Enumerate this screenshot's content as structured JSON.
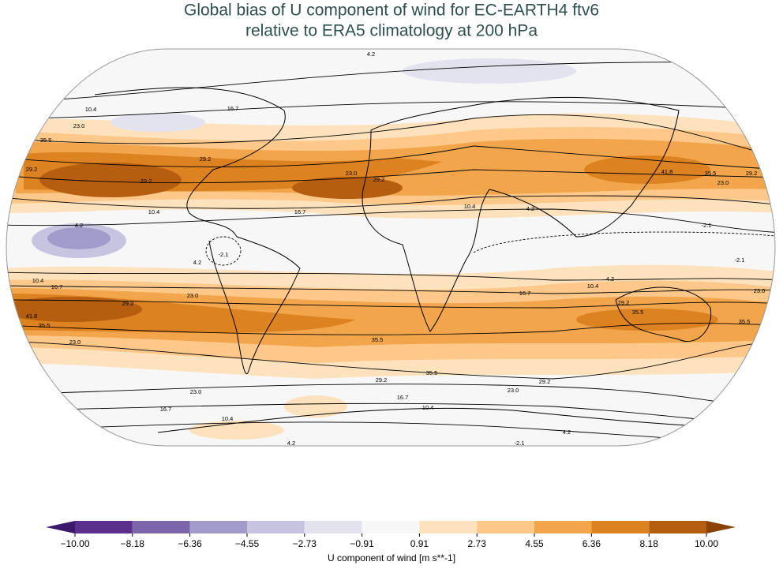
{
  "header": {
    "title": [
      "Global bias of U component of wind for EC-EARTH4 ftv6",
      "relative to ERA5 climatology at 200 hPa"
    ]
  },
  "map": {
    "contour_labels": [
      "4.2",
      "10.4",
      "16.7",
      "23.0",
      "35.5",
      "29.2",
      "29.2",
      "29.2",
      "10.4",
      "16.7",
      "4.2",
      "4.2",
      "-2.1",
      "23.0",
      "29.2",
      "10.4",
      "4.2",
      "41.8",
      "35.5",
      "29.2",
      "23.0",
      "-2.1",
      "-2.1",
      "10.4",
      "16.7",
      "23.0",
      "29.2",
      "41.8",
      "35.5",
      "23.0",
      "4.2",
      "10.4",
      "16.7",
      "29.2",
      "35.5",
      "23.0",
      "35.5",
      "35.5",
      "35.5",
      "29.2",
      "29.2",
      "23.0",
      "23.0",
      "16.7",
      "16.7",
      "10.4",
      "10.4",
      "4.2",
      "4.2",
      "-2.1"
    ]
  },
  "colorbar": {
    "label": "U component of wind [m s**-1]",
    "ticks": [
      {
        "value": -10,
        "label": "−10.00"
      },
      {
        "value": -8.18,
        "label": "−8.18"
      },
      {
        "value": -6.36,
        "label": "−6.36"
      },
      {
        "value": -4.55,
        "label": "−4.55"
      },
      {
        "value": -2.73,
        "label": "−2.73"
      },
      {
        "value": -0.91,
        "label": "−0.91"
      },
      0.91,
      2.73,
      4.55,
      6.36,
      8.18,
      {
        "value": 10,
        "label": "10.00"
      }
    ],
    "colors": [
      "#3b1a6b",
      "#5b2f8c",
      "#7b66ab",
      "#a29ccb",
      "#c7c4e1",
      "#e3e2ef",
      "#f7f7f7",
      "#fde2bd",
      "#fdc88a",
      "#f2a54b",
      "#dd8220",
      "#b65e10",
      "#8a4208"
    ]
  }
}
